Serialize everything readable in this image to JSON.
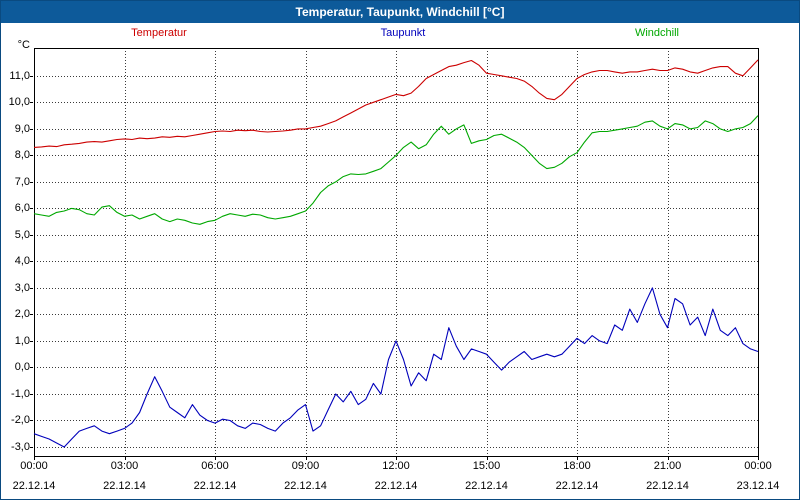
{
  "window": {
    "title": "Temperatur, Taupunkt, Windchill [°C]"
  },
  "colors": {
    "titlebar_bg": "#0d5a9a",
    "titlebar_text": "#ffffff",
    "frame": "#0a4a80",
    "grid": "#3a3a3a",
    "axis": "#000000",
    "temperatur": "#cc0000",
    "taupunkt": "#0000bb",
    "windchill": "#00a800"
  },
  "legend": {
    "items": [
      {
        "label": "Temperatur",
        "color": "#cc0000"
      },
      {
        "label": "Taupunkt",
        "color": "#0000bb"
      },
      {
        "label": "Windchill",
        "color": "#00a800"
      }
    ]
  },
  "chart_data": {
    "type": "line",
    "title": "Temperatur, Taupunkt, Windchill [°C]",
    "ylabel": "°C",
    "xlabel": "",
    "grid": "dotted",
    "legend_position": "top",
    "ylim": [
      -3.34,
      12.05
    ],
    "xlim_hours": [
      0,
      24
    ],
    "y_ticks": [
      {
        "value": 11,
        "label": "11,0"
      },
      {
        "value": 10,
        "label": "10,0"
      },
      {
        "value": 9,
        "label": "9,0"
      },
      {
        "value": 8,
        "label": "8,0"
      },
      {
        "value": 7,
        "label": "7,0"
      },
      {
        "value": 6,
        "label": "6,0"
      },
      {
        "value": 5,
        "label": "5,0"
      },
      {
        "value": 4,
        "label": "4,0"
      },
      {
        "value": 3,
        "label": "3,0"
      },
      {
        "value": 2,
        "label": "2,0"
      },
      {
        "value": 1,
        "label": "1,0"
      },
      {
        "value": 0,
        "label": "0,0"
      },
      {
        "value": -1,
        "label": "-1,0"
      },
      {
        "value": -2,
        "label": "-2,0"
      },
      {
        "value": -3,
        "label": "-3,0"
      }
    ],
    "x_ticks": [
      {
        "hour": 0,
        "time": "00:00",
        "date": "22.12.14"
      },
      {
        "hour": 3,
        "time": "03:00",
        "date": "22.12.14"
      },
      {
        "hour": 6,
        "time": "06:00",
        "date": "22.12.14"
      },
      {
        "hour": 9,
        "time": "09:00",
        "date": "22.12.14"
      },
      {
        "hour": 12,
        "time": "12:00",
        "date": "22.12.14"
      },
      {
        "hour": 15,
        "time": "15:00",
        "date": "22.12.14"
      },
      {
        "hour": 18,
        "time": "18:00",
        "date": "22.12.14"
      },
      {
        "hour": 21,
        "time": "21:00",
        "date": "22.12.14"
      },
      {
        "hour": 24,
        "time": "00:00",
        "date": "23.12.14"
      }
    ],
    "x_hours_start": 0,
    "x_hours_step": 0.25,
    "series": [
      {
        "name": "Temperatur",
        "color": "#cc0000",
        "values": [
          8.3,
          8.32,
          8.35,
          8.33,
          8.4,
          8.42,
          8.45,
          8.5,
          8.52,
          8.5,
          8.55,
          8.6,
          8.62,
          8.6,
          8.65,
          8.63,
          8.65,
          8.7,
          8.68,
          8.72,
          8.7,
          8.75,
          8.8,
          8.85,
          8.9,
          8.92,
          8.9,
          8.95,
          8.93,
          8.95,
          8.9,
          8.88,
          8.9,
          8.92,
          8.95,
          9.0,
          9.0,
          9.05,
          9.1,
          9.2,
          9.3,
          9.45,
          9.6,
          9.75,
          9.9,
          10.0,
          10.1,
          10.2,
          10.3,
          10.25,
          10.35,
          10.6,
          10.9,
          11.05,
          11.2,
          11.35,
          11.4,
          11.5,
          11.58,
          11.4,
          11.1,
          11.05,
          11.0,
          10.95,
          10.9,
          10.8,
          10.6,
          10.35,
          10.15,
          10.1,
          10.3,
          10.6,
          10.9,
          11.05,
          11.15,
          11.2,
          11.2,
          11.15,
          11.1,
          11.15,
          11.15,
          11.2,
          11.25,
          11.2,
          11.2,
          11.3,
          11.25,
          11.15,
          11.1,
          11.2,
          11.3,
          11.35,
          11.35,
          11.1,
          11.0,
          11.3,
          11.6
        ]
      },
      {
        "name": "Taupunkt",
        "color": "#0000bb",
        "values": [
          -2.5,
          -2.6,
          -2.7,
          -2.85,
          -3.0,
          -2.7,
          -2.4,
          -2.3,
          -2.2,
          -2.4,
          -2.5,
          -2.4,
          -2.3,
          -2.1,
          -1.7,
          -1.0,
          -0.35,
          -0.9,
          -1.5,
          -1.7,
          -1.9,
          -1.4,
          -1.8,
          -2.0,
          -2.1,
          -1.95,
          -2.0,
          -2.2,
          -2.3,
          -2.1,
          -2.15,
          -2.3,
          -2.4,
          -2.1,
          -1.9,
          -1.6,
          -1.4,
          -2.4,
          -2.2,
          -1.6,
          -1.0,
          -1.3,
          -0.9,
          -1.4,
          -1.2,
          -0.6,
          -1.0,
          0.3,
          1.0,
          0.3,
          -0.7,
          -0.2,
          -0.5,
          0.5,
          0.3,
          1.5,
          0.8,
          0.3,
          0.7,
          0.6,
          0.5,
          0.2,
          -0.1,
          0.2,
          0.4,
          0.6,
          0.3,
          0.4,
          0.5,
          0.4,
          0.5,
          0.8,
          1.1,
          0.9,
          1.2,
          1.0,
          0.9,
          1.6,
          1.4,
          2.2,
          1.7,
          2.4,
          3.0,
          2.0,
          1.5,
          2.6,
          2.4,
          1.6,
          1.9,
          1.2,
          2.2,
          1.4,
          1.2,
          1.5,
          0.9,
          0.7,
          0.6
        ]
      },
      {
        "name": "Windchill",
        "color": "#00a800",
        "values": [
          5.8,
          5.75,
          5.7,
          5.85,
          5.9,
          6.0,
          5.95,
          5.8,
          5.75,
          6.05,
          6.1,
          5.85,
          5.7,
          5.75,
          5.6,
          5.7,
          5.8,
          5.6,
          5.5,
          5.6,
          5.55,
          5.45,
          5.4,
          5.5,
          5.55,
          5.7,
          5.8,
          5.75,
          5.7,
          5.78,
          5.75,
          5.65,
          5.6,
          5.65,
          5.7,
          5.8,
          5.9,
          6.2,
          6.6,
          6.85,
          7.0,
          7.2,
          7.3,
          7.28,
          7.3,
          7.4,
          7.5,
          7.75,
          8.0,
          8.3,
          8.5,
          8.25,
          8.4,
          8.8,
          9.1,
          8.8,
          9.0,
          9.15,
          8.45,
          8.55,
          8.6,
          8.75,
          8.8,
          8.65,
          8.5,
          8.3,
          8.0,
          7.7,
          7.5,
          7.55,
          7.7,
          7.95,
          8.1,
          8.5,
          8.85,
          8.9,
          8.9,
          8.95,
          9.0,
          9.05,
          9.1,
          9.25,
          9.3,
          9.1,
          9.0,
          9.2,
          9.15,
          9.0,
          9.05,
          9.3,
          9.2,
          9.0,
          8.9,
          9.0,
          9.05,
          9.2,
          9.5
        ]
      }
    ]
  }
}
